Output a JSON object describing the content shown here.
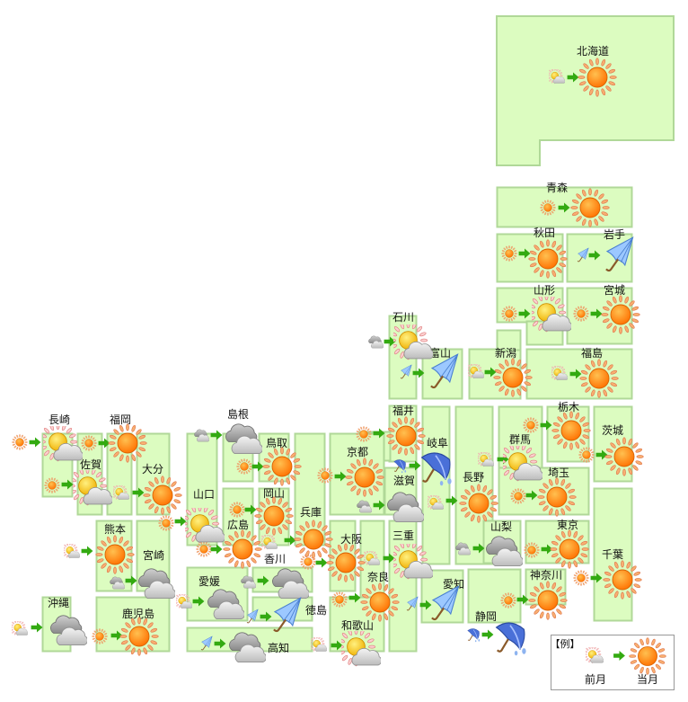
{
  "legend": {
    "title": "【例】",
    "prev_label": "前月",
    "current_label": "当月",
    "prev_icon": "partly-cloudy-icon",
    "current_icon": "sunny-icon"
  },
  "colors": {
    "region_fill": "#dcfcc0",
    "region_border": "#b0d898",
    "arrow": "#33aa11"
  },
  "prefectures": [
    {
      "name": "北海道",
      "prev": "partly-cloudy",
      "current": "sunny"
    },
    {
      "name": "青森",
      "prev": "sunny",
      "current": "sunny"
    },
    {
      "name": "秋田",
      "prev": "sunny",
      "current": "sunny"
    },
    {
      "name": "岩手",
      "prev": "rain",
      "current": "rain"
    },
    {
      "name": "山形",
      "prev": "sunny",
      "current": "partly-cloudy"
    },
    {
      "name": "宮城",
      "prev": "sunny",
      "current": "sunny"
    },
    {
      "name": "新潟",
      "prev": "partly-cloudy",
      "current": "sunny"
    },
    {
      "name": "福島",
      "prev": "partly-cloudy",
      "current": "sunny"
    },
    {
      "name": "石川",
      "prev": "cloudy",
      "current": "partly-cloudy"
    },
    {
      "name": "富山",
      "prev": "rain",
      "current": "rain"
    },
    {
      "name": "福井",
      "prev": "sunny",
      "current": "sunny"
    },
    {
      "name": "岐阜",
      "prev": "heavy-rain",
      "current": "heavy-rain"
    },
    {
      "name": "長野",
      "prev": "partly-cloudy",
      "current": "sunny"
    },
    {
      "name": "群馬",
      "prev": "partly-cloudy",
      "current": "partly-cloudy"
    },
    {
      "name": "栃木",
      "prev": "sunny",
      "current": "sunny"
    },
    {
      "name": "茨城",
      "prev": "sunny",
      "current": "sunny"
    },
    {
      "name": "埼玉",
      "prev": "sunny",
      "current": "sunny"
    },
    {
      "name": "東京",
      "prev": "sunny",
      "current": "sunny"
    },
    {
      "name": "千葉",
      "prev": "sunny",
      "current": "sunny"
    },
    {
      "name": "神奈川",
      "prev": "sunny",
      "current": "sunny"
    },
    {
      "name": "山梨",
      "prev": "cloudy",
      "current": "cloudy"
    },
    {
      "name": "静岡",
      "prev": "heavy-rain",
      "current": "heavy-rain"
    },
    {
      "name": "愛知",
      "prev": "rain",
      "current": "rain"
    },
    {
      "name": "三重",
      "prev": "partly-cloudy",
      "current": "partly-cloudy"
    },
    {
      "name": "奈良",
      "prev": "sunny",
      "current": "sunny"
    },
    {
      "name": "大阪",
      "prev": "sunny",
      "current": "sunny"
    },
    {
      "name": "和歌山",
      "prev": "partly-cloudy",
      "current": "partly-cloudy"
    },
    {
      "name": "京都",
      "prev": "sunny",
      "current": "sunny"
    },
    {
      "name": "滋賀",
      "prev": "cloudy",
      "current": "cloudy"
    },
    {
      "name": "兵庫",
      "prev": "partly-cloudy",
      "current": "sunny"
    },
    {
      "name": "鳥取",
      "prev": "sunny",
      "current": "sunny"
    },
    {
      "name": "島根",
      "prev": "cloudy",
      "current": "cloudy"
    },
    {
      "name": "岡山",
      "prev": "sunny",
      "current": "sunny"
    },
    {
      "name": "広島",
      "prev": "sunny",
      "current": "sunny"
    },
    {
      "name": "山口",
      "prev": "sunny",
      "current": "partly-cloudy"
    },
    {
      "name": "香川",
      "prev": "cloudy",
      "current": "cloudy"
    },
    {
      "name": "愛媛",
      "prev": "partly-cloudy",
      "current": "cloudy"
    },
    {
      "name": "徳島",
      "prev": "rain",
      "current": "rain"
    },
    {
      "name": "高知",
      "prev": "rain",
      "current": "cloudy"
    },
    {
      "name": "福岡",
      "prev": "sunny",
      "current": "sunny"
    },
    {
      "name": "長崎",
      "prev": "sunny",
      "current": "partly-cloudy"
    },
    {
      "name": "佐賀",
      "prev": "sunny",
      "current": "partly-cloudy"
    },
    {
      "name": "大分",
      "prev": "partly-cloudy",
      "current": "sunny"
    },
    {
      "name": "熊本",
      "prev": "partly-cloudy",
      "current": "sunny"
    },
    {
      "name": "宮崎",
      "prev": "cloudy",
      "current": "cloudy"
    },
    {
      "name": "鹿児島",
      "prev": "sunny",
      "current": "sunny"
    },
    {
      "name": "沖縄",
      "prev": "partly-cloudy",
      "current": "cloudy"
    }
  ]
}
